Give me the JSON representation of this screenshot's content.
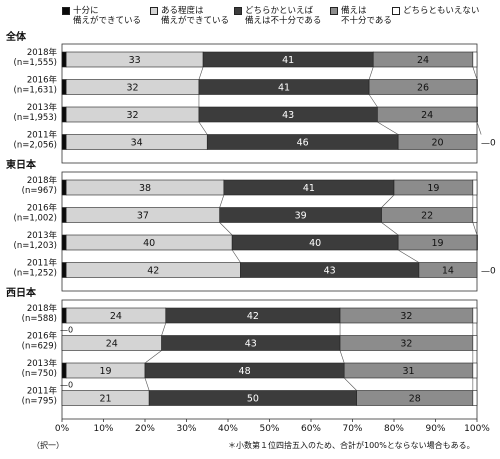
{
  "legend": [
    {
      "line1": "十分に",
      "line2": "備えができている",
      "color": "#0a0a0a"
    },
    {
      "line1": "ある程度は",
      "line2": "備えができている",
      "color": "#d4d4d4"
    },
    {
      "line1": "どちらかといえば",
      "line2": "備えは不十分である",
      "color": "#3c3c3c"
    },
    {
      "line1": "備えは",
      "line2": "不十分である",
      "color": "#8c8c8c"
    },
    {
      "line1": "どちらともいえない",
      "line2": "",
      "color": "#ffffff"
    }
  ],
  "footnote_left": "（択一）",
  "footnote_right": "＊小数第１位四捨五入のため、合計が100%とならない場合もある。",
  "chart_data": {
    "type": "bar",
    "orientation": "horizontal-stacked-100",
    "xlim": [
      0,
      100
    ],
    "x_ticks": [
      "0%",
      "10%",
      "20%",
      "30%",
      "40%",
      "50%",
      "60%",
      "70%",
      "80%",
      "90%",
      "100%"
    ],
    "series": [
      {
        "name": "十分に備えができている",
        "color": "#0a0a0a"
      },
      {
        "name": "ある程度は備えができている",
        "color": "#d4d4d4"
      },
      {
        "name": "どちらかといえば備えは不十分である",
        "color": "#3c3c3c"
      },
      {
        "name": "備えは不十分である",
        "color": "#8c8c8c"
      },
      {
        "name": "どちらともいえない",
        "color": "#ffffff"
      }
    ],
    "groups": [
      {
        "name": "全体",
        "rows": [
          {
            "year": "2018年",
            "n": "(n=1,555)",
            "values": [
              1,
              33,
              41,
              24,
              1
            ],
            "labels": [
              "",
              "33",
              "41",
              "24",
              ""
            ],
            "extra": ""
          },
          {
            "year": "2016年",
            "n": "(n=1,631)",
            "values": [
              1,
              32,
              41,
              26,
              1
            ],
            "labels": [
              "",
              "32",
              "41",
              "26",
              ""
            ],
            "extra": ""
          },
          {
            "year": "2013年",
            "n": "(n=1,953)",
            "values": [
              1,
              32,
              43,
              24,
              1
            ],
            "labels": [
              "",
              "32",
              "43",
              "24",
              ""
            ],
            "extra": ""
          },
          {
            "year": "2011年",
            "n": "(n=2,056)",
            "values": [
              1,
              34,
              46,
              20,
              0
            ],
            "labels": [
              "",
              "34",
              "46",
              "20",
              ""
            ],
            "extra": "0"
          }
        ]
      },
      {
        "name": "東日本",
        "rows": [
          {
            "year": "2018年",
            "n": "(n=967)",
            "values": [
              1,
              38,
              41,
              19,
              1
            ],
            "labels": [
              "",
              "38",
              "41",
              "19",
              ""
            ],
            "extra": ""
          },
          {
            "year": "2016年",
            "n": "(n=1,002)",
            "values": [
              1,
              37,
              39,
              22,
              1
            ],
            "labels": [
              "",
              "37",
              "39",
              "22",
              ""
            ],
            "extra": ""
          },
          {
            "year": "2013年",
            "n": "(n=1,203)",
            "values": [
              1,
              40,
              40,
              19,
              1
            ],
            "labels": [
              "",
              "40",
              "40",
              "19",
              ""
            ],
            "extra": ""
          },
          {
            "year": "2011年",
            "n": "(n=1,252)",
            "values": [
              1,
              42,
              43,
              14,
              0
            ],
            "labels": [
              "",
              "42",
              "43",
              "14",
              ""
            ],
            "extra": "0"
          }
        ]
      },
      {
        "name": "西日本",
        "rows": [
          {
            "year": "2018年",
            "n": "(n=588)",
            "values": [
              1,
              24,
              42,
              32,
              1
            ],
            "labels": [
              "",
              "24",
              "42",
              "32",
              ""
            ],
            "extra": ""
          },
          {
            "year": "2016年",
            "n": "(n=629)",
            "values": [
              0,
              24,
              43,
              32,
              1
            ],
            "labels": [
              "0",
              "24",
              "43",
              "32",
              ""
            ],
            "extra": ""
          },
          {
            "year": "2013年",
            "n": "(n=750)",
            "values": [
              1,
              19,
              48,
              31,
              1
            ],
            "labels": [
              "",
              "19",
              "48",
              "31",
              ""
            ],
            "extra": ""
          },
          {
            "year": "2011年",
            "n": "(n=795)",
            "values": [
              0,
              21,
              50,
              28,
              1
            ],
            "labels": [
              "0",
              "21",
              "50",
              "28",
              ""
            ],
            "extra": ""
          }
        ]
      }
    ]
  }
}
